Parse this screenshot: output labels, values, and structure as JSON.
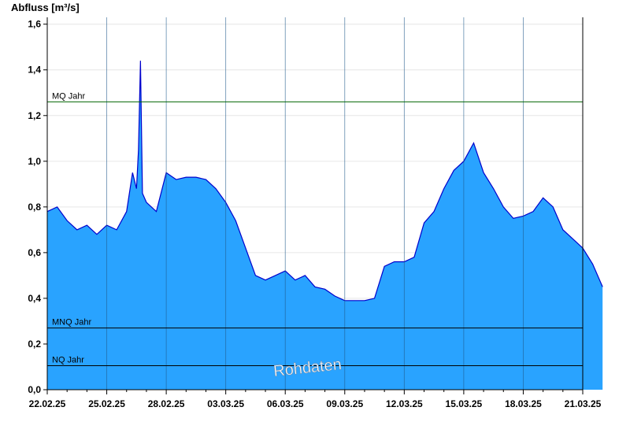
{
  "chart_data": {
    "type": "area",
    "ylabel": "Abfluss [m³/s]",
    "ylim": [
      0,
      1.63
    ],
    "yticks": [
      0.0,
      0.2,
      0.4,
      0.6,
      0.8,
      1.0,
      1.2,
      1.4,
      1.6
    ],
    "ytick_labels": [
      "0,0",
      "0,2",
      "0,4",
      "0,6",
      "0,8",
      "1,0",
      "1,2",
      "1,4",
      "1,6"
    ],
    "xlim": [
      "22.02.25",
      "21.03.25"
    ],
    "xtick_labels": [
      "22.02.25",
      "25.02.25",
      "28.02.25",
      "03.03.25",
      "06.03.25",
      "09.03.25",
      "12.03.25",
      "15.03.25",
      "18.03.25",
      "21.03.25"
    ],
    "grid": true,
    "colors": {
      "fill": "#29a3ff",
      "line": "#0000cc",
      "mq_line": "#006400",
      "ref_line": "#000000"
    },
    "reference_lines": [
      {
        "label": "MQ Jahr",
        "value": 1.26
      },
      {
        "label": "MNQ Jahr",
        "value": 0.27
      },
      {
        "label": "NQ Jahr",
        "value": 0.105
      }
    ],
    "watermark": "Rohdaten",
    "series": [
      {
        "x_unit": "day",
        "x": [
          0,
          0.5,
          1,
          1.5,
          2,
          2.5,
          3,
          3.5,
          4,
          4.3,
          4.5,
          4.6,
          4.7,
          4.8,
          5,
          5.5,
          6,
          6.5,
          7,
          7.5,
          8,
          8.5,
          9,
          9.5,
          10,
          10.5,
          11,
          11.5,
          12,
          12.5,
          13,
          13.5,
          14,
          14.5,
          15,
          15.5,
          16,
          16.5,
          17,
          17.5,
          18,
          18.5,
          19,
          19.5,
          20,
          20.5,
          21,
          21.5,
          22,
          22.5,
          23,
          23.5,
          24,
          24.5,
          25,
          25.5,
          26,
          26.5,
          27,
          27.5,
          28
        ],
        "values": [
          0.78,
          0.8,
          0.74,
          0.7,
          0.72,
          0.68,
          0.72,
          0.7,
          0.78,
          0.95,
          0.88,
          1.05,
          1.44,
          0.86,
          0.82,
          0.78,
          0.95,
          0.92,
          0.93,
          0.93,
          0.92,
          0.88,
          0.82,
          0.74,
          0.62,
          0.5,
          0.48,
          0.5,
          0.52,
          0.48,
          0.5,
          0.45,
          0.44,
          0.41,
          0.39,
          0.39,
          0.39,
          0.4,
          0.54,
          0.56,
          0.56,
          0.58,
          0.73,
          0.78,
          0.88,
          0.96,
          1.0,
          1.08,
          0.95,
          0.88,
          0.8,
          0.75,
          0.76,
          0.78,
          0.84,
          0.8,
          0.7,
          0.66,
          0.62,
          0.55,
          0.45
        ]
      }
    ]
  }
}
